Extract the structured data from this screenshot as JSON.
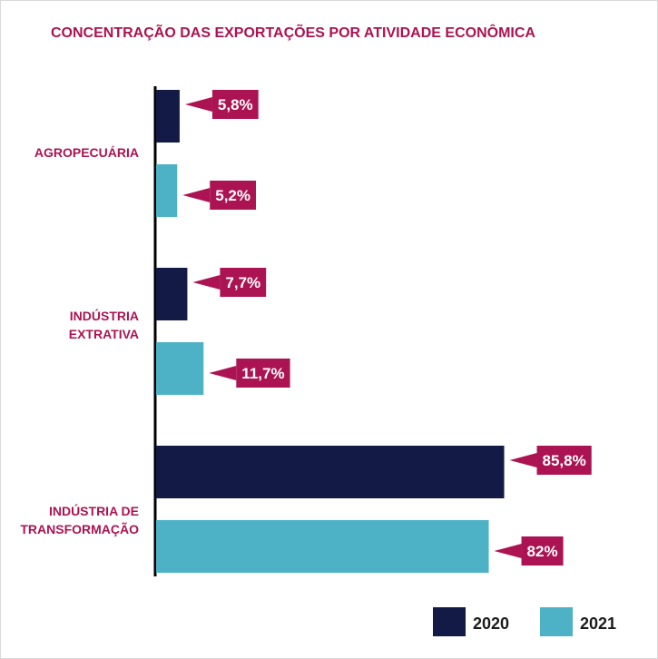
{
  "chart_data": {
    "type": "bar",
    "orientation": "horizontal",
    "title": "CONCENTRAÇÃO DAS EXPORTAÇÕES POR ATIVIDADE ECONÔMICA",
    "categories": [
      [
        "AGROPECUÁRIA"
      ],
      [
        "INDÚSTRIA",
        "EXTRATIVA"
      ],
      [
        "INDÚSTRIA DE",
        "TRANSFORMAÇÃO"
      ]
    ],
    "series": [
      {
        "name": "2020",
        "color": "#131a45",
        "values": [
          5.8,
          7.7,
          85.8
        ],
        "labels": [
          "5,8%",
          "7,7%",
          "85,8%"
        ]
      },
      {
        "name": "2021",
        "color": "#4eb2c7",
        "values": [
          5.2,
          11.7,
          82.0
        ],
        "labels": [
          "5,2%",
          "11,7%",
          "82%"
        ]
      }
    ],
    "xlim": [
      0,
      100
    ],
    "xlabel": "",
    "ylabel": "",
    "grid": false,
    "legend_position": "bottom-right",
    "accent_color": "#ab1352"
  }
}
